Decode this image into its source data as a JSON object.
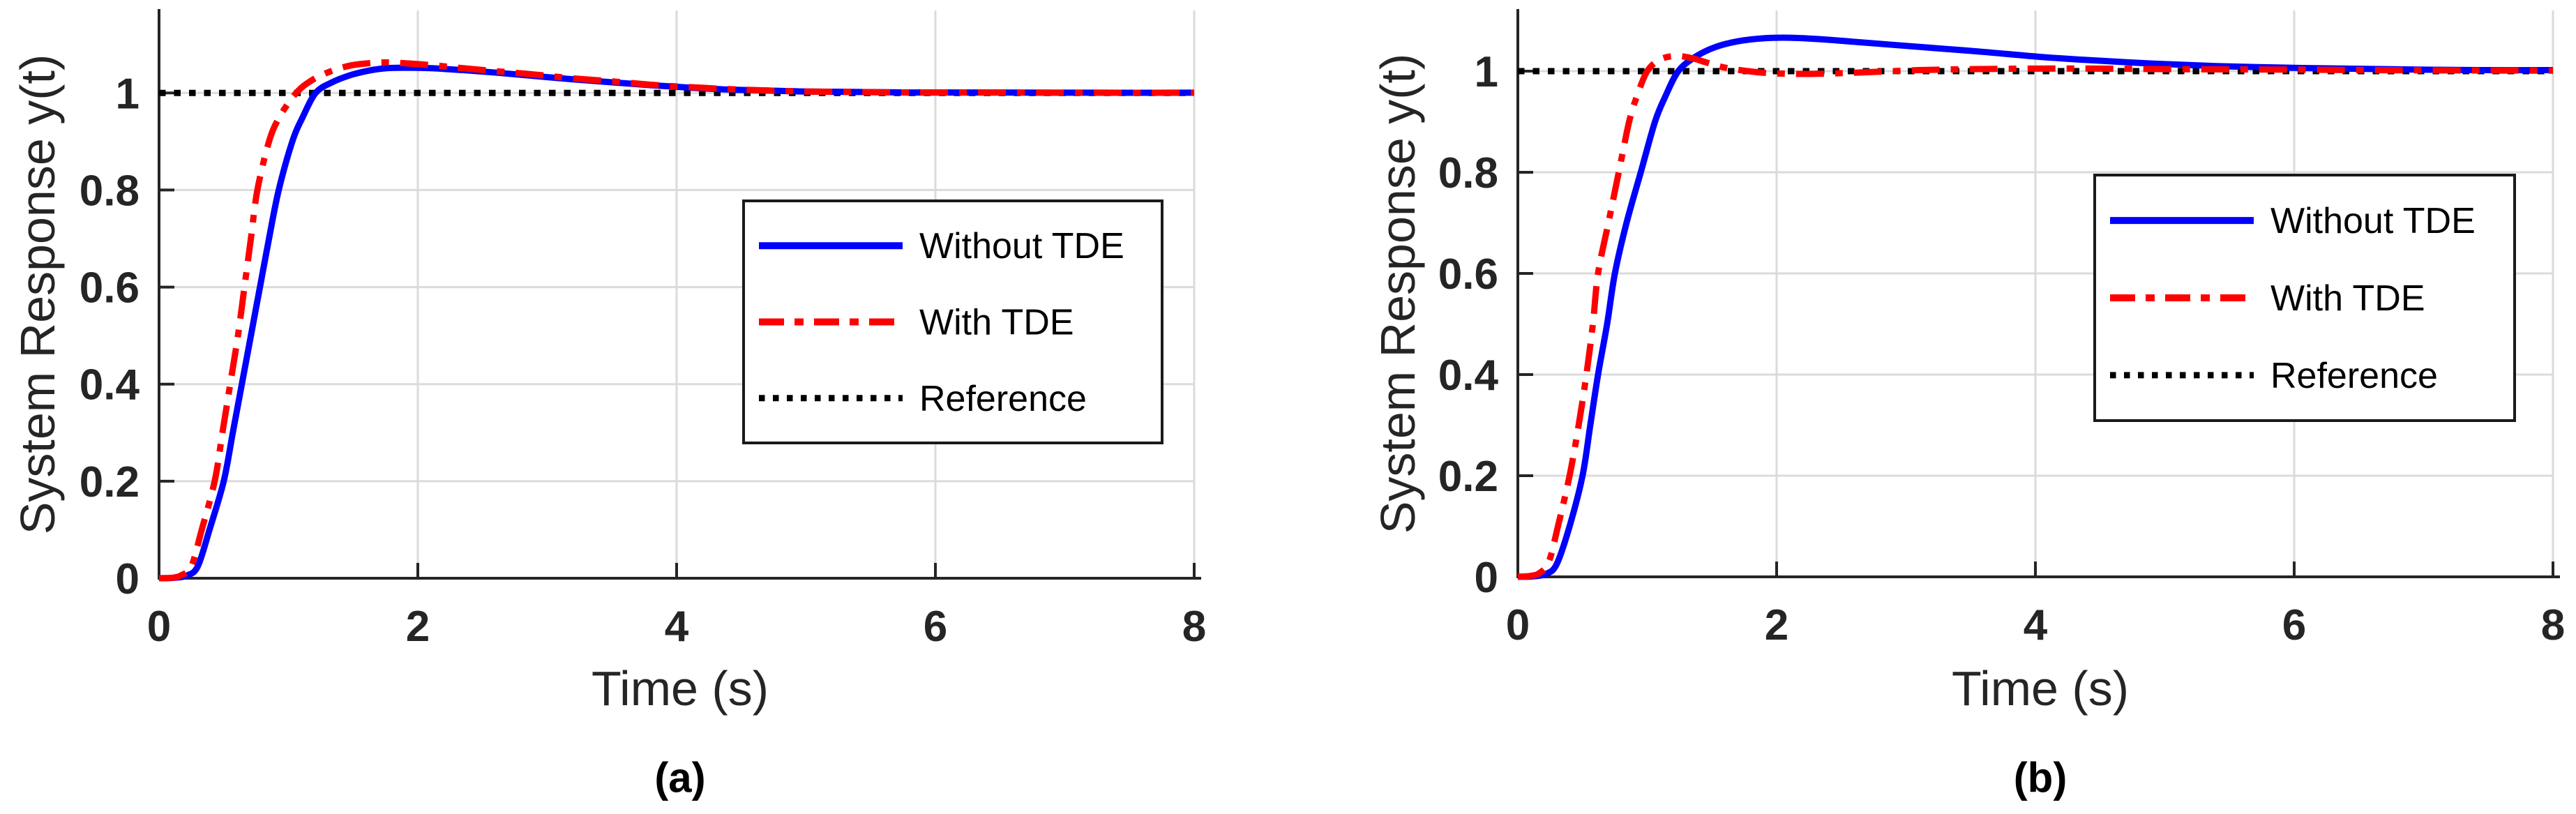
{
  "figure": {
    "background": "#FFFFFF"
  },
  "colors": {
    "without_tde": "#0000FF",
    "with_tde": "#FF0000",
    "reference": "#000000",
    "grid": "#DBDBDB",
    "axis": "#252525"
  },
  "chart_data": [
    {
      "id": "a",
      "type": "line",
      "caption": "(a)",
      "xlabel": "Time (s)",
      "ylabel": "System Response y(t)",
      "xlim": [
        0,
        8
      ],
      "ylim": [
        0,
        1.17
      ],
      "x_ticks": [
        0,
        2,
        4,
        6,
        8
      ],
      "y_ticks": [
        0,
        0.2,
        0.4,
        0.6,
        0.8,
        1
      ],
      "grid": true,
      "legend_position": "upper right",
      "legend": [
        "Without TDE",
        "With TDE",
        "Reference"
      ],
      "series": [
        {
          "name": "Reference",
          "color": "#000000",
          "style": "dotted",
          "points": [
            [
              0,
              1
            ],
            [
              8,
              1
            ]
          ]
        },
        {
          "name": "Without TDE",
          "color": "#0000FF",
          "style": "solid",
          "points": [
            [
              0,
              0
            ],
            [
              0.12,
              0.001
            ],
            [
              0.22,
              0.006
            ],
            [
              0.3,
              0.025
            ],
            [
              0.39,
              0.1
            ],
            [
              0.5,
              0.2
            ],
            [
              0.57,
              0.3
            ],
            [
              0.64,
              0.4
            ],
            [
              0.71,
              0.5
            ],
            [
              0.78,
              0.6
            ],
            [
              0.85,
              0.7
            ],
            [
              0.925,
              0.8
            ],
            [
              1.03,
              0.9
            ],
            [
              1.11,
              0.95
            ],
            [
              1.21,
              1.0
            ],
            [
              1.33,
              1.021
            ],
            [
              1.47,
              1.036
            ],
            [
              1.62,
              1.046
            ],
            [
              1.76,
              1.051
            ],
            [
              1.9,
              1.052
            ],
            [
              2.1,
              1.051
            ],
            [
              2.35,
              1.047
            ],
            [
              2.6,
              1.042
            ],
            [
              2.9,
              1.035
            ],
            [
              3.2,
              1.028
            ],
            [
              3.5,
              1.022
            ],
            [
              3.8,
              1.016
            ],
            [
              4.1,
              1.011
            ],
            [
              4.4,
              1.007
            ],
            [
              4.7,
              1.005
            ],
            [
              5.0,
              1.003
            ],
            [
              5.4,
              1.002
            ],
            [
              5.8,
              1.001
            ],
            [
              6.4,
              1.001
            ],
            [
              7.2,
              1.0005
            ],
            [
              8,
              1.0005
            ]
          ]
        },
        {
          "name": "With TDE",
          "color": "#FF0000",
          "style": "dashdot",
          "points": [
            [
              0,
              0
            ],
            [
              0.1,
              0.001
            ],
            [
              0.17,
              0.006
            ],
            [
              0.25,
              0.025
            ],
            [
              0.33,
              0.1
            ],
            [
              0.43,
              0.2
            ],
            [
              0.49,
              0.3
            ],
            [
              0.55,
              0.4
            ],
            [
              0.61,
              0.5
            ],
            [
              0.66,
              0.6
            ],
            [
              0.71,
              0.7
            ],
            [
              0.76,
              0.8
            ],
            [
              0.85,
              0.9
            ],
            [
              0.93,
              0.95
            ],
            [
              1.06,
              1.0
            ],
            [
              1.18,
              1.026
            ],
            [
              1.32,
              1.044
            ],
            [
              1.47,
              1.056
            ],
            [
              1.61,
              1.061
            ],
            [
              1.75,
              1.063
            ],
            [
              1.92,
              1.061
            ],
            [
              2.12,
              1.057
            ],
            [
              2.35,
              1.051
            ],
            [
              2.6,
              1.045
            ],
            [
              2.9,
              1.038
            ],
            [
              3.2,
              1.03
            ],
            [
              3.5,
              1.024
            ],
            [
              3.8,
              1.017
            ],
            [
              4.1,
              1.012
            ],
            [
              4.4,
              1.008
            ],
            [
              4.7,
              1.005
            ],
            [
              5.0,
              1.003
            ],
            [
              5.4,
              1.002
            ],
            [
              5.8,
              1.001
            ],
            [
              6.4,
              1.001
            ],
            [
              7.2,
              1.0005
            ],
            [
              8,
              1.0005
            ]
          ]
        }
      ]
    },
    {
      "id": "b",
      "type": "line",
      "caption": "(b)",
      "xlabel": "Time (s)",
      "ylabel": "System Response y(t)",
      "xlim": [
        0,
        8
      ],
      "ylim": [
        0,
        1.12
      ],
      "x_ticks": [
        0,
        2,
        4,
        6,
        8
      ],
      "y_ticks": [
        0,
        0.2,
        0.4,
        0.6,
        0.8,
        1
      ],
      "grid": true,
      "legend_position": "upper right",
      "legend": [
        "Without TDE",
        "With TDE",
        "Reference"
      ],
      "series": [
        {
          "name": "Reference",
          "color": "#000000",
          "style": "dotted",
          "points": [
            [
              0,
              1
            ],
            [
              8,
              1
            ]
          ]
        },
        {
          "name": "Without TDE",
          "color": "#0000FF",
          "style": "solid",
          "points": [
            [
              0,
              0
            ],
            [
              0.12,
              0.001
            ],
            [
              0.22,
              0.006
            ],
            [
              0.3,
              0.025
            ],
            [
              0.4,
              0.1
            ],
            [
              0.5,
              0.2
            ],
            [
              0.56,
              0.3
            ],
            [
              0.62,
              0.4
            ],
            [
              0.69,
              0.5
            ],
            [
              0.75,
              0.6
            ],
            [
              0.84,
              0.7
            ],
            [
              0.95,
              0.8
            ],
            [
              1.06,
              0.9
            ],
            [
              1.14,
              0.95
            ],
            [
              1.24,
              1.0
            ],
            [
              1.37,
              1.028
            ],
            [
              1.52,
              1.047
            ],
            [
              1.7,
              1.059
            ],
            [
              1.9,
              1.065
            ],
            [
              2.1,
              1.066
            ],
            [
              2.35,
              1.063
            ],
            [
              2.6,
              1.058
            ],
            [
              2.9,
              1.052
            ],
            [
              3.2,
              1.046
            ],
            [
              3.6,
              1.038
            ],
            [
              4.0,
              1.029
            ],
            [
              4.4,
              1.022
            ],
            [
              4.9,
              1.015
            ],
            [
              5.4,
              1.01
            ],
            [
              5.9,
              1.007
            ],
            [
              6.4,
              1.005
            ],
            [
              7.0,
              1.003
            ],
            [
              7.5,
              1.002
            ],
            [
              8,
              1.002
            ]
          ]
        },
        {
          "name": "With TDE",
          "color": "#FF0000",
          "style": "dashdot",
          "points": [
            [
              0,
              0
            ],
            [
              0.1,
              0.002
            ],
            [
              0.17,
              0.008
            ],
            [
              0.24,
              0.03
            ],
            [
              0.31,
              0.1
            ],
            [
              0.4,
              0.2
            ],
            [
              0.47,
              0.3
            ],
            [
              0.53,
              0.4
            ],
            [
              0.58,
              0.5
            ],
            [
              0.62,
              0.6
            ],
            [
              0.7,
              0.7
            ],
            [
              0.78,
              0.8
            ],
            [
              0.86,
              0.9
            ],
            [
              0.92,
              0.95
            ],
            [
              1.0,
              1.0
            ],
            [
              1.1,
              1.023
            ],
            [
              1.22,
              1.03
            ],
            [
              1.34,
              1.026
            ],
            [
              1.46,
              1.017
            ],
            [
              1.6,
              1.007
            ],
            [
              1.78,
              1.0
            ],
            [
              1.95,
              0.996
            ],
            [
              2.2,
              0.9945
            ],
            [
              2.5,
              0.996
            ],
            [
              2.8,
              0.999
            ],
            [
              3.1,
              1.002
            ],
            [
              3.5,
              1.004
            ],
            [
              4.0,
              1.005
            ],
            [
              4.5,
              1.005
            ],
            [
              5.0,
              1.004
            ],
            [
              5.5,
              1.0035
            ],
            [
              6.0,
              1.003
            ],
            [
              6.6,
              1.002
            ],
            [
              7.2,
              1.0015
            ],
            [
              8,
              1.001
            ]
          ]
        }
      ]
    }
  ]
}
